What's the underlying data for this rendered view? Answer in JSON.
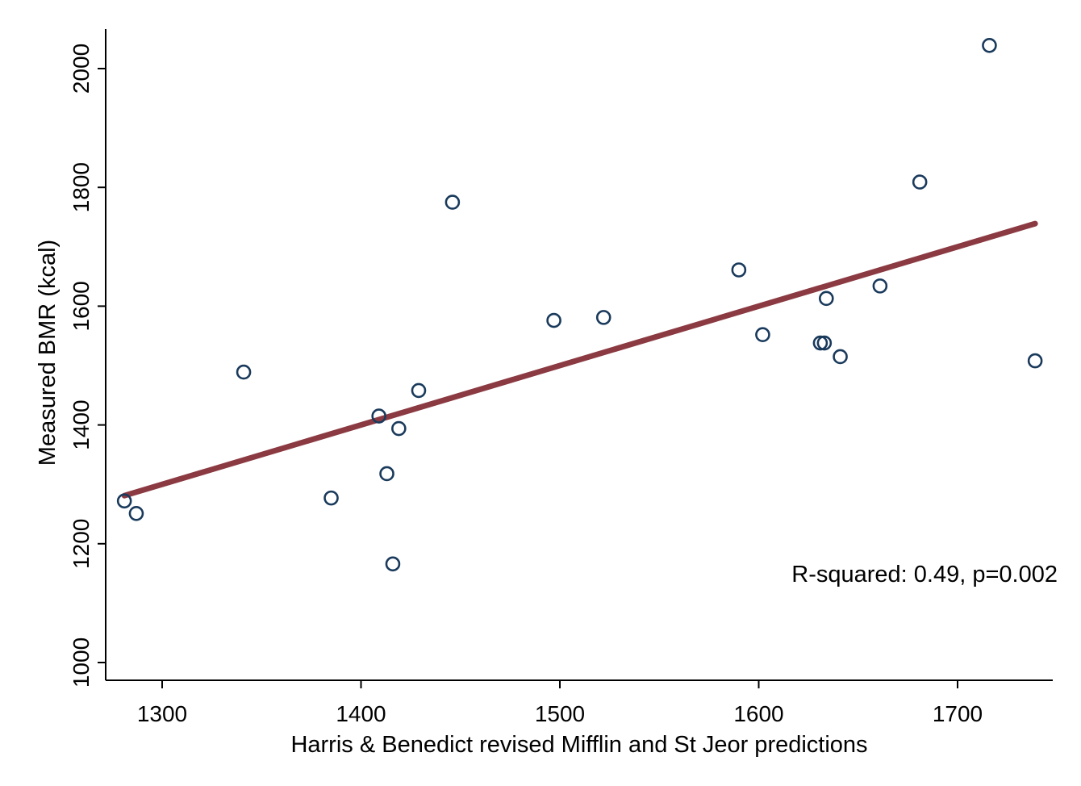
{
  "chart_data": {
    "type": "scatter",
    "xlabel": "Harris & Benedict revised Mifflin and St Jeor predictions",
    "ylabel": "Measured BMR (kcal)",
    "xlim": [
      1272,
      1748
    ],
    "ylim": [
      970,
      2070
    ],
    "x_ticks": [
      1300,
      1400,
      1500,
      1600,
      1700
    ],
    "y_ticks": [
      1000,
      1200,
      1400,
      1600,
      1800,
      2000
    ],
    "x_tick_labels": [
      "1300",
      "1400",
      "1500",
      "1600",
      "1700"
    ],
    "y_tick_labels": [
      "1000",
      "1200",
      "1400",
      "1600",
      "1800",
      "2000"
    ],
    "annotation": "R-squared: 0.49, p=0.002",
    "grid": false,
    "colors": {
      "points": "#1a3a5c",
      "fit_line": "#8b3a42"
    },
    "points": [
      {
        "x": 1281,
        "y": 1272
      },
      {
        "x": 1287,
        "y": 1251
      },
      {
        "x": 1341,
        "y": 1489
      },
      {
        "x": 1385,
        "y": 1277
      },
      {
        "x": 1409,
        "y": 1415
      },
      {
        "x": 1413,
        "y": 1318
      },
      {
        "x": 1416,
        "y": 1166
      },
      {
        "x": 1419,
        "y": 1394
      },
      {
        "x": 1429,
        "y": 1458
      },
      {
        "x": 1446,
        "y": 1775
      },
      {
        "x": 1497,
        "y": 1576
      },
      {
        "x": 1522,
        "y": 1581
      },
      {
        "x": 1590,
        "y": 1661
      },
      {
        "x": 1602,
        "y": 1552
      },
      {
        "x": 1631,
        "y": 1538
      },
      {
        "x": 1633,
        "y": 1538
      },
      {
        "x": 1634,
        "y": 1613
      },
      {
        "x": 1641,
        "y": 1515
      },
      {
        "x": 1661,
        "y": 1634
      },
      {
        "x": 1681,
        "y": 1809
      },
      {
        "x": 1716,
        "y": 2039
      },
      {
        "x": 1739,
        "y": 1508
      }
    ],
    "fit_line": {
      "x": [
        1281,
        1739
      ],
      "y": [
        1281,
        1739
      ]
    }
  }
}
